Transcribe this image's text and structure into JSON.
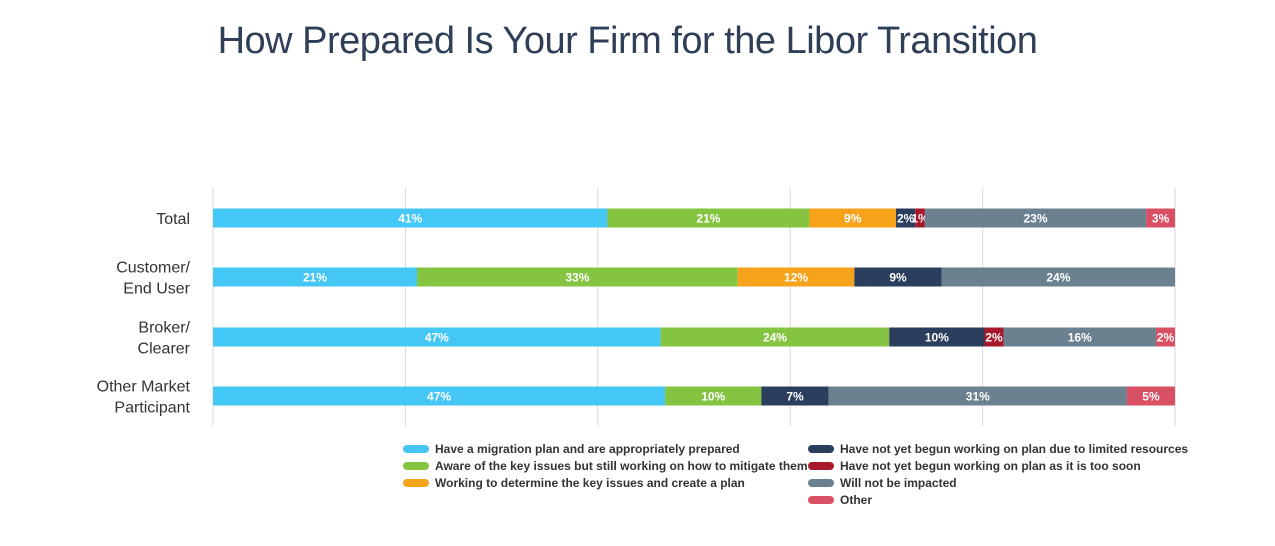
{
  "chart_data": {
    "type": "bar",
    "orientation": "horizontal",
    "stacked": true,
    "title": "How Prepared Is Your Firm for the Libor Transition",
    "categories": [
      [
        "Total"
      ],
      [
        "Customer/",
        "End User"
      ],
      [
        "Broker/",
        "Clearer"
      ],
      [
        "Other Market",
        "Participant"
      ]
    ],
    "series": [
      {
        "name": "Have a migration plan and are appropriately prepared",
        "color": "#45c7f5",
        "values": [
          41,
          21,
          47,
          47
        ],
        "labels": [
          "41%",
          "21%",
          "47%",
          "47%"
        ]
      },
      {
        "name": "Aware of the key issues but still working on how to mitigate them",
        "color": "#84c441",
        "values": [
          21,
          33,
          24,
          10
        ],
        "labels": [
          "21%",
          "33%",
          "24%",
          "10%"
        ]
      },
      {
        "name": "Working to determine the key issues and create a plan",
        "color": "#f7a21b",
        "values": [
          9,
          12,
          0,
          0
        ],
        "labels": [
          "9%",
          "12%",
          "",
          ""
        ]
      },
      {
        "name": "Have not yet  begun working on plan due to limited resources",
        "color": "#2c3e5e",
        "values": [
          2,
          9,
          10,
          7
        ],
        "labels": [
          "2%",
          "9%",
          "10%",
          "7%"
        ]
      },
      {
        "name": "Have not yet begun working on plan as it is too soon",
        "color": "#a8182b",
        "values": [
          1,
          0,
          2,
          0
        ],
        "labels": [
          "1%",
          "",
          "2%",
          ""
        ]
      },
      {
        "name": "Will not be impacted",
        "color": "#6b8190",
        "values": [
          23,
          24,
          16,
          31
        ],
        "labels": [
          "23%",
          "24%",
          "16%",
          "31%"
        ]
      },
      {
        "name": "Other",
        "color": "#d94f63",
        "values": [
          3,
          0,
          2,
          5
        ],
        "labels": [
          "3%",
          "",
          "2%",
          "5%"
        ]
      }
    ],
    "xlim": [
      0,
      100
    ],
    "grid": true,
    "legend_position": "bottom"
  }
}
